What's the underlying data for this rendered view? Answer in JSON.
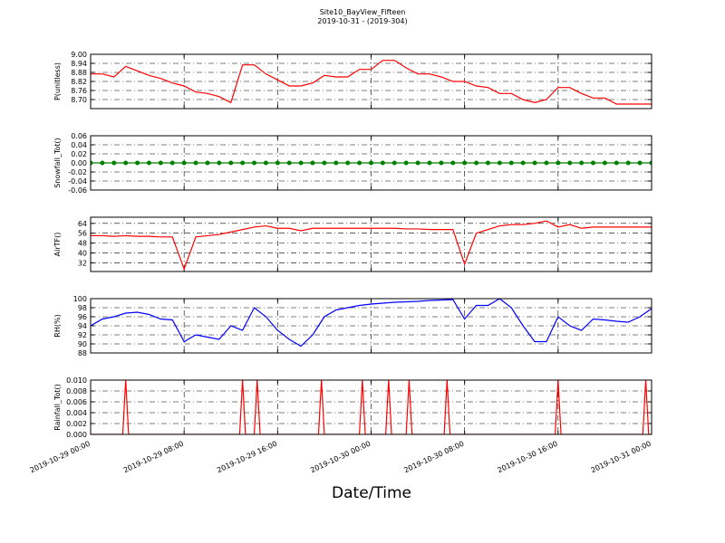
{
  "title": "Site10_BayView_Fifteen",
  "subtitle": "2019-10-31 - (2019-304)",
  "xlabel": "Date/Time",
  "chart_data": [
    {
      "type": "line",
      "ylabel": "P(unitless)",
      "color": "#ff0000",
      "grid": true,
      "ylim": [
        8.64,
        9.0
      ],
      "yticks": [
        {
          "value": 8.7,
          "label": "8.70"
        },
        8.76,
        8.82,
        8.88,
        8.94,
        {
          "value": 9.0,
          "label": "9.00"
        }
      ],
      "x": [
        "2019-10-29 00:00",
        "2019-10-29 01:00",
        "2019-10-29 02:00",
        "2019-10-29 03:00",
        "2019-10-29 04:00",
        "2019-10-29 05:00",
        "2019-10-29 06:00",
        "2019-10-29 07:00",
        "2019-10-29 08:00",
        "2019-10-29 09:00",
        "2019-10-29 10:00",
        "2019-10-29 11:00",
        "2019-10-29 12:00",
        "2019-10-29 13:00",
        "2019-10-29 14:00",
        "2019-10-29 15:00",
        "2019-10-29 16:00",
        "2019-10-29 17:00",
        "2019-10-29 18:00",
        "2019-10-29 19:00",
        "2019-10-29 20:00",
        "2019-10-29 21:00",
        "2019-10-29 22:00",
        "2019-10-29 23:00",
        "2019-10-30 00:00",
        "2019-10-30 01:00",
        "2019-10-30 02:00",
        "2019-10-30 03:00",
        "2019-10-30 04:00",
        "2019-10-30 05:00",
        "2019-10-30 06:00",
        "2019-10-30 07:00",
        "2019-10-30 08:00",
        "2019-10-30 09:00",
        "2019-10-30 10:00",
        "2019-10-30 11:00",
        "2019-10-30 12:00",
        "2019-10-30 13:00",
        "2019-10-30 14:00",
        "2019-10-30 15:00",
        "2019-10-30 16:00",
        "2019-10-30 17:00",
        "2019-10-30 18:00",
        "2019-10-30 19:00",
        "2019-10-30 20:00",
        "2019-10-30 21:00",
        "2019-10-30 22:00",
        "2019-10-30 23:00",
        "2019-10-31 00:00"
      ],
      "values": [
        8.87,
        8.87,
        8.85,
        8.92,
        8.89,
        8.86,
        8.84,
        8.81,
        8.79,
        8.75,
        8.74,
        8.72,
        8.68,
        8.93,
        8.93,
        8.87,
        8.83,
        8.79,
        8.79,
        8.81,
        8.86,
        8.85,
        8.85,
        8.9,
        8.9,
        8.96,
        8.96,
        8.91,
        8.87,
        8.87,
        8.85,
        8.82,
        8.82,
        8.79,
        8.78,
        8.74,
        8.74,
        8.7,
        8.68,
        8.7,
        8.78,
        8.78,
        8.74,
        8.71,
        8.71,
        8.67,
        8.67,
        8.67,
        8.67
      ]
    },
    {
      "type": "line",
      "ylabel": "Snowfall_Tot()",
      "color": "#008000",
      "marker": "circle",
      "grid": true,
      "ylim": [
        -0.06,
        0.06
      ],
      "yticks": [
        -0.06,
        -0.04,
        -0.02,
        {
          "value": 0,
          "label": "0.00"
        },
        0.02,
        0.04,
        0.06
      ],
      "x": [
        "2019-10-29 00:00",
        "2019-10-29 01:00",
        "2019-10-29 02:00",
        "2019-10-29 03:00",
        "2019-10-29 04:00",
        "2019-10-29 05:00",
        "2019-10-29 06:00",
        "2019-10-29 07:00",
        "2019-10-29 08:00",
        "2019-10-29 09:00",
        "2019-10-29 10:00",
        "2019-10-29 11:00",
        "2019-10-29 12:00",
        "2019-10-29 13:00",
        "2019-10-29 14:00",
        "2019-10-29 15:00",
        "2019-10-29 16:00",
        "2019-10-29 17:00",
        "2019-10-29 18:00",
        "2019-10-29 19:00",
        "2019-10-29 20:00",
        "2019-10-29 21:00",
        "2019-10-29 22:00",
        "2019-10-29 23:00",
        "2019-10-30 00:00",
        "2019-10-30 01:00",
        "2019-10-30 02:00",
        "2019-10-30 03:00",
        "2019-10-30 04:00",
        "2019-10-30 05:00",
        "2019-10-30 06:00",
        "2019-10-30 07:00",
        "2019-10-30 08:00",
        "2019-10-30 09:00",
        "2019-10-30 10:00",
        "2019-10-30 11:00",
        "2019-10-30 12:00",
        "2019-10-30 13:00",
        "2019-10-30 14:00",
        "2019-10-30 15:00",
        "2019-10-30 16:00",
        "2019-10-30 17:00",
        "2019-10-30 18:00",
        "2019-10-30 19:00",
        "2019-10-30 20:00",
        "2019-10-30 21:00",
        "2019-10-30 22:00",
        "2019-10-30 23:00",
        "2019-10-31 00:00"
      ],
      "values": [
        0,
        0,
        0,
        0,
        0,
        0,
        0,
        0,
        0,
        0,
        0,
        0,
        0,
        0,
        0,
        0,
        0,
        0,
        0,
        0,
        0,
        0,
        0,
        0,
        0,
        0,
        0,
        0,
        0,
        0,
        0,
        0,
        0,
        0,
        0,
        0,
        0,
        0,
        0,
        0,
        0,
        0,
        0,
        0,
        0,
        0,
        0,
        0,
        0
      ]
    },
    {
      "type": "line",
      "ylabel": "AirTF()",
      "color": "#ff0000",
      "grid": true,
      "ylim": [
        25,
        69
      ],
      "yticks": [
        32,
        40,
        48,
        56,
        64
      ],
      "x": [
        "2019-10-29 00:00",
        "2019-10-29 01:00",
        "2019-10-29 02:00",
        "2019-10-29 03:00",
        "2019-10-29 04:00",
        "2019-10-29 05:00",
        "2019-10-29 06:00",
        "2019-10-29 07:00",
        "2019-10-29 08:00",
        "2019-10-29 09:00",
        "2019-10-29 10:00",
        "2019-10-29 11:00",
        "2019-10-29 12:00",
        "2019-10-29 13:00",
        "2019-10-29 14:00",
        "2019-10-29 15:00",
        "2019-10-29 16:00",
        "2019-10-29 17:00",
        "2019-10-29 18:00",
        "2019-10-29 19:00",
        "2019-10-29 20:00",
        "2019-10-29 21:00",
        "2019-10-29 22:00",
        "2019-10-29 23:00",
        "2019-10-30 00:00",
        "2019-10-30 01:00",
        "2019-10-30 02:00",
        "2019-10-30 03:00",
        "2019-10-30 04:00",
        "2019-10-30 05:00",
        "2019-10-30 06:00",
        "2019-10-30 07:00",
        "2019-10-30 08:00",
        "2019-10-30 09:00",
        "2019-10-30 10:00",
        "2019-10-30 11:00",
        "2019-10-30 12:00",
        "2019-10-30 13:00",
        "2019-10-30 14:00",
        "2019-10-30 15:00",
        "2019-10-30 16:00",
        "2019-10-30 17:00",
        "2019-10-30 18:00",
        "2019-10-30 19:00",
        "2019-10-30 20:00",
        "2019-10-30 21:00",
        "2019-10-30 22:00",
        "2019-10-30 23:00",
        "2019-10-31 00:00"
      ],
      "values": [
        54,
        54,
        53.5,
        54,
        53.5,
        53.5,
        53,
        53,
        27,
        53,
        54,
        55,
        57,
        59,
        61,
        62,
        60,
        60,
        58,
        60,
        60,
        60,
        60,
        60,
        60,
        60,
        60,
        59.5,
        59.5,
        59,
        59,
        59,
        31,
        56,
        59,
        62,
        63,
        63,
        64,
        66,
        61,
        63,
        60,
        61,
        61,
        61,
        61,
        61,
        61
      ]
    },
    {
      "type": "line",
      "ylabel": "RH(%)",
      "color": "#0000ff",
      "grid": true,
      "ylim": [
        88,
        100
      ],
      "yticks": [
        88,
        90,
        92,
        94,
        96,
        98,
        100
      ],
      "x": [
        "2019-10-29 00:00",
        "2019-10-29 01:00",
        "2019-10-29 02:00",
        "2019-10-29 03:00",
        "2019-10-29 04:00",
        "2019-10-29 05:00",
        "2019-10-29 06:00",
        "2019-10-29 07:00",
        "2019-10-29 08:00",
        "2019-10-29 09:00",
        "2019-10-29 10:00",
        "2019-10-29 11:00",
        "2019-10-29 12:00",
        "2019-10-29 13:00",
        "2019-10-29 14:00",
        "2019-10-29 15:00",
        "2019-10-29 16:00",
        "2019-10-29 17:00",
        "2019-10-29 18:00",
        "2019-10-29 19:00",
        "2019-10-29 20:00",
        "2019-10-29 21:00",
        "2019-10-29 22:00",
        "2019-10-29 23:00",
        "2019-10-30 00:00",
        "2019-10-30 01:00",
        "2019-10-30 02:00",
        "2019-10-30 03:00",
        "2019-10-30 04:00",
        "2019-10-30 05:00",
        "2019-10-30 06:00",
        "2019-10-30 07:00",
        "2019-10-30 08:00",
        "2019-10-30 09:00",
        "2019-10-30 10:00",
        "2019-10-30 11:00",
        "2019-10-30 12:00",
        "2019-10-30 13:00",
        "2019-10-30 14:00",
        "2019-10-30 15:00",
        "2019-10-30 16:00",
        "2019-10-30 17:00",
        "2019-10-30 18:00",
        "2019-10-30 19:00",
        "2019-10-30 20:00",
        "2019-10-30 21:00",
        "2019-10-30 22:00",
        "2019-10-30 23:00",
        "2019-10-31 00:00"
      ],
      "values": [
        94,
        95.5,
        96,
        96.8,
        97,
        96.5,
        95.5,
        95.3,
        90.5,
        92,
        91.5,
        91,
        94,
        93,
        98,
        96,
        93,
        91,
        89.5,
        92,
        96,
        97.5,
        98,
        98.5,
        98.8,
        99,
        99.2,
        99.3,
        99.4,
        99.6,
        99.7,
        99.8,
        95.5,
        98.5,
        98.5,
        100,
        98,
        94,
        90.5,
        90.5,
        96,
        94,
        93,
        95.5,
        95.3,
        95,
        94.8,
        96,
        97.8
      ]
    },
    {
      "type": "line",
      "ylabel": "Rainfall_Tot()",
      "color": "#ff0000",
      "grid": true,
      "ylim": [
        0,
        0.01
      ],
      "yticks": [
        {
          "value": 0,
          "label": "0.000"
        },
        0.002,
        0.004,
        0.006,
        0.008,
        {
          "value": 0.01,
          "label": "0.010"
        }
      ],
      "xlim": [
        "2019-10-29 00:00",
        "2019-10-31 00:00"
      ],
      "xticks": [
        "2019-10-29 00:00",
        "2019-10-29 08:00",
        "2019-10-29 16:00",
        "2019-10-30 00:00",
        "2019-10-30 08:00",
        "2019-10-30 16:00",
        "2019-10-31 00:00"
      ],
      "x": [
        "2019-10-29 00:00",
        "2019-10-29 02:45",
        "2019-10-29 03:00",
        "2019-10-29 03:15",
        "2019-10-29 12:45",
        "2019-10-29 13:00",
        "2019-10-29 13:15",
        "2019-10-29 14:00",
        "2019-10-29 14:15",
        "2019-10-29 14:30",
        "2019-10-29 19:30",
        "2019-10-29 19:45",
        "2019-10-29 20:00",
        "2019-10-29 23:00",
        "2019-10-29 23:15",
        "2019-10-29 23:30",
        "2019-10-30 01:15",
        "2019-10-30 01:30",
        "2019-10-30 01:45",
        "2019-10-30 03:00",
        "2019-10-30 03:15",
        "2019-10-30 03:30",
        "2019-10-30 06:15",
        "2019-10-30 06:30",
        "2019-10-30 06:45",
        "2019-10-30 15:45",
        "2019-10-30 16:00",
        "2019-10-30 16:15",
        "2019-10-30 23:15",
        "2019-10-30 23:30",
        "2019-10-30 23:45",
        "2019-10-31 00:00"
      ],
      "values": [
        0,
        0,
        0.01,
        0,
        0,
        0.01,
        0,
        0,
        0.01,
        0,
        0,
        0.01,
        0,
        0,
        0.01,
        0,
        0,
        0.01,
        0,
        0,
        0.01,
        0,
        0,
        0.01,
        0,
        0,
        0.01,
        0,
        0,
        0.01,
        0,
        0
      ]
    }
  ]
}
